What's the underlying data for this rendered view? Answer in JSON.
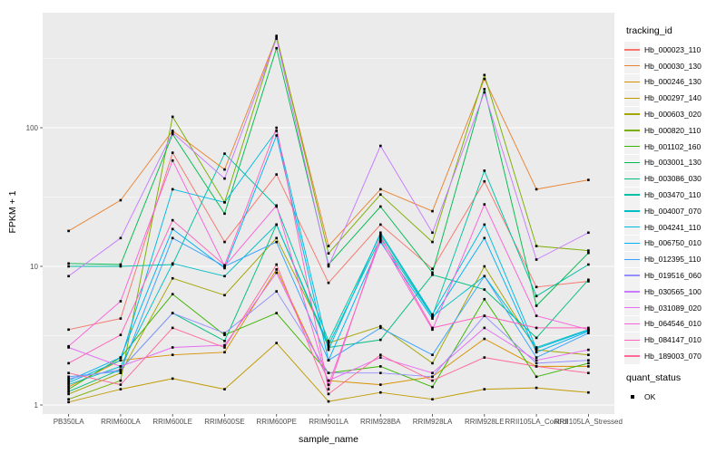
{
  "chart_data": {
    "type": "line",
    "title": "",
    "xlabel": "sample_name",
    "ylabel": "FPKM + 1",
    "yscale": "log10",
    "ylim": [
      0.86,
      676
    ],
    "yticks": [
      1,
      10,
      100
    ],
    "ytick_labels": [
      "1",
      "10",
      "100"
    ],
    "grid_minor": [
      3.1623,
      31.623,
      316.23
    ],
    "grid_on": true,
    "legend_position": "right",
    "legend_title": "tracking_id",
    "quant_legend": {
      "title": "quant_status",
      "items": [
        "OK"
      ]
    },
    "panel_bg": "#EBEBEB",
    "grid_color": "#FFFFFF",
    "point_color": "#000000",
    "axis_text_color": "#4d4d4d",
    "categories": [
      "PB350LA",
      "RRIM600LA",
      "RRIM600LE",
      "RRIM600SE",
      "RRIM600PE",
      "RRIM901LA",
      "RRIM928BA",
      "RRIM928LA",
      "RRIM928LE",
      "RRII105LA_Control",
      "RRII105LA_Stressed"
    ],
    "series": [
      {
        "name": "Hb_000023_110",
        "color": "#F8766D",
        "values": [
          3.5,
          4.2,
          66,
          15,
          46,
          7.6,
          20,
          9.6,
          41,
          7.1,
          7.8
        ]
      },
      {
        "name": "Hb_000030_130",
        "color": "#EA8331",
        "values": [
          18,
          30,
          95,
          50,
          450,
          14,
          36,
          25,
          225,
          36,
          42
        ]
      },
      {
        "name": "Hb_000246_130",
        "color": "#D89000",
        "values": [
          1.35,
          2.1,
          2.3,
          2.4,
          9.5,
          1.5,
          1.4,
          1.6,
          3.0,
          1.9,
          1.9
        ]
      },
      {
        "name": "Hb_000297_140",
        "color": "#C09B00",
        "values": [
          1.05,
          1.3,
          1.55,
          1.3,
          2.8,
          1.06,
          1.23,
          1.1,
          1.3,
          1.33,
          1.23
        ]
      },
      {
        "name": "Hb_000603_020",
        "color": "#A3A500",
        "values": [
          1.2,
          1.7,
          8.2,
          6.2,
          16,
          2.8,
          3.7,
          2.0,
          10,
          2.5,
          2.3
        ]
      },
      {
        "name": "Hb_000820_110",
        "color": "#7CAE00",
        "values": [
          1.1,
          1.5,
          120,
          29,
          460,
          12.4,
          33,
          15,
          240,
          14,
          13
        ]
      },
      {
        "name": "Hb_001102_160",
        "color": "#39B600",
        "values": [
          1.3,
          2.2,
          6.3,
          3.2,
          4.6,
          1.7,
          1.9,
          1.35,
          5.8,
          1.6,
          2.0
        ]
      },
      {
        "name": "Hb_003001_130",
        "color": "#00BB4E",
        "values": [
          10.5,
          10.3,
          90,
          24,
          375,
          10.3,
          27,
          9.0,
          190,
          5.2,
          12.5
        ]
      },
      {
        "name": "Hb_003086_030",
        "color": "#00BF7D",
        "values": [
          1.25,
          1.8,
          4.6,
          2.9,
          20,
          2.6,
          2.95,
          8.7,
          6.8,
          3.05,
          8.0
        ]
      },
      {
        "name": "Hb_003470_110",
        "color": "#00C1A3",
        "values": [
          10,
          10,
          10.3,
          65,
          27,
          2.9,
          17,
          4.4,
          49,
          6.1,
          10.3
        ]
      },
      {
        "name": "Hb_004007_070",
        "color": "#00BFC4",
        "values": [
          1.4,
          1.9,
          10.5,
          8.5,
          20,
          2.7,
          16,
          4.35,
          8.5,
          2.6,
          3.5
        ]
      },
      {
        "name": "Hb_004241_110",
        "color": "#00BAE0",
        "values": [
          1.45,
          2.1,
          36,
          29,
          95,
          2.5,
          17.5,
          4.5,
          20,
          2.55,
          3.45
        ]
      },
      {
        "name": "Hb_006750_010",
        "color": "#00B0F6",
        "values": [
          1.5,
          2.2,
          18.6,
          9.7,
          88,
          2.1,
          15,
          4.2,
          16,
          2.4,
          3.4
        ]
      },
      {
        "name": "Hb_012395_110",
        "color": "#35A2FF",
        "values": [
          1.6,
          1.75,
          16,
          10,
          15,
          2.1,
          3.6,
          2.3,
          8.5,
          2.2,
          3.3
        ]
      },
      {
        "name": "Hb_019516_060",
        "color": "#9590FF",
        "values": [
          1.55,
          1.8,
          4.6,
          3.3,
          6.6,
          1.7,
          1.7,
          1.6,
          4.4,
          2.0,
          2.1
        ]
      },
      {
        "name": "Hb_030565_100",
        "color": "#C77CFF",
        "values": [
          8.5,
          16,
          92,
          43,
          440,
          10,
          74,
          17.5,
          180,
          11.2,
          17.5
        ]
      },
      {
        "name": "Hb_031089_020",
        "color": "#E76BF3",
        "values": [
          2.6,
          1.9,
          2.6,
          2.7,
          9.0,
          1.5,
          2.2,
          1.7,
          3.6,
          2.1,
          2.5
        ]
      },
      {
        "name": "Hb_064546_010",
        "color": "#FA62DB",
        "values": [
          2.65,
          5.6,
          58,
          10,
          27.5,
          1.4,
          15.5,
          3.5,
          28,
          4.4,
          3.5
        ]
      },
      {
        "name": "Hb_084147_010",
        "color": "#FF62BC",
        "values": [
          2.0,
          3.2,
          21.5,
          10.2,
          100,
          1.3,
          16.5,
          3.6,
          4.4,
          3.6,
          3.6
        ]
      },
      {
        "name": "Hb_189003_070",
        "color": "#FF6A98",
        "values": [
          1.7,
          1.4,
          3.6,
          2.6,
          10.3,
          1.2,
          2.3,
          1.5,
          2.2,
          1.9,
          1.7
        ]
      }
    ]
  }
}
